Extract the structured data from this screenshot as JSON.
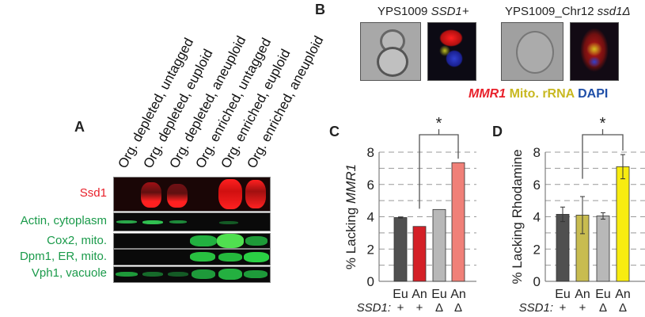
{
  "panel_a": {
    "label": "A",
    "lanes": [
      "Org. depleted, untagged",
      "Org. depleted, euploid",
      "Org. depleted, aneuploid",
      "Org. enriched, untagged",
      "Org. enriched, euploid",
      "Org. enriched, aneuploid"
    ],
    "rows": [
      "Ssd1",
      "Actin, cytoplasm",
      "Cox2, mito.",
      "Dpm1, ER, mito.",
      "Vph1, vacuole"
    ],
    "colors": {
      "ssd1": "#e8202a",
      "markers": "#1a9a4a"
    }
  },
  "panel_b": {
    "label": "B",
    "left_title_strain": "YPS1009",
    "left_title_gene": "SSD1+",
    "right_title_strain": "YPS1009_Chr12",
    "right_title_gene": "ssd1Δ",
    "legend": [
      {
        "text": "MMR1",
        "color": "#e8202a"
      },
      {
        "text": "Mito. rRNA",
        "color": "#c8b820"
      },
      {
        "text": "DAPI",
        "color": "#1f4fa8"
      }
    ]
  },
  "chart_data": [
    {
      "panel": "C",
      "type": "bar",
      "ylabel_prefix": "% Lacking ",
      "ylabel_gene": "MMR1",
      "ylim": [
        0,
        8
      ],
      "yticks": [
        "0",
        "2",
        "4",
        "6",
        "8"
      ],
      "categories": [
        "Eu",
        "An",
        "Eu",
        "An"
      ],
      "genotype_label": "SSD1:",
      "genotypes": [
        "+",
        "+",
        "Δ",
        "Δ"
      ],
      "values": [
        3.95,
        3.4,
        4.45,
        7.35
      ],
      "errors": [
        0.03,
        0,
        0,
        0
      ],
      "colors": [
        "#505050",
        "#d42027",
        "#b8b8b8",
        "#f08078"
      ],
      "significance": {
        "between": [
          1,
          3
        ],
        "label": "*"
      },
      "grid": "dashed"
    },
    {
      "panel": "D",
      "type": "bar",
      "ylabel": "% Lacking Rhodamine",
      "ylim": [
        0,
        8
      ],
      "yticks": [
        "0",
        "2",
        "4",
        "6",
        "8"
      ],
      "categories": [
        "Eu",
        "An",
        "Eu",
        "An"
      ],
      "genotype_label": "SSD1:",
      "genotypes": [
        "+",
        "+",
        "Δ",
        "Δ"
      ],
      "values": [
        4.15,
        4.1,
        4.05,
        7.1
      ],
      "errors": [
        0.45,
        1.15,
        0.2,
        0.75
      ],
      "colors": [
        "#505050",
        "#c8bc50",
        "#b8b8b8",
        "#f8ec10"
      ],
      "significance": {
        "between": [
          1,
          3
        ],
        "label": "*"
      },
      "grid": "dashed"
    }
  ]
}
